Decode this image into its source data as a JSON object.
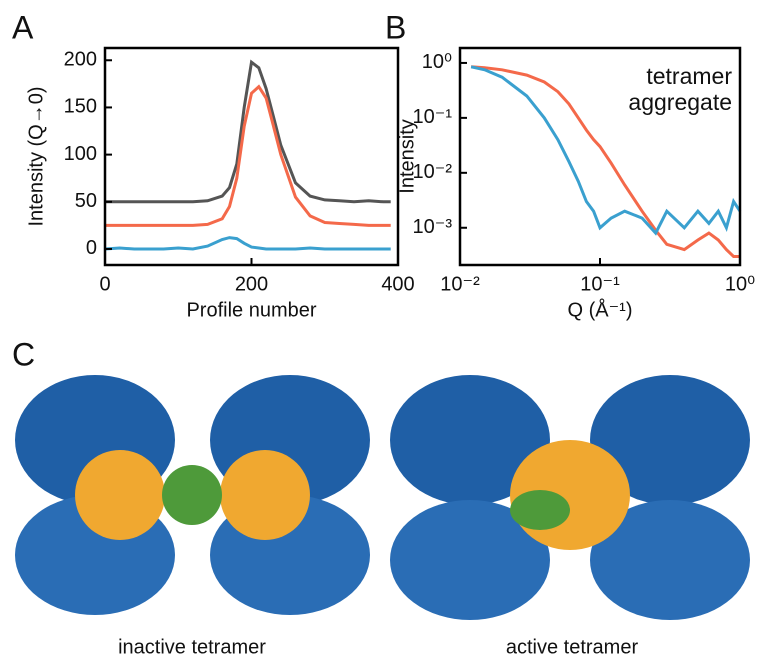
{
  "panel_labels": [
    "A",
    "B",
    "C"
  ],
  "chart_data": [
    {
      "type": "line",
      "xlabel": "Profile number",
      "ylabel": "Intensity (Q→0)",
      "x": [
        0,
        20,
        40,
        60,
        80,
        100,
        120,
        140,
        160,
        170,
        180,
        190,
        200,
        210,
        220,
        230,
        240,
        260,
        280,
        300,
        320,
        340,
        360,
        380,
        390
      ],
      "series": [
        {
          "color": "#555555",
          "values": [
            50,
            50,
            50,
            50,
            50,
            50,
            50,
            51,
            56,
            65,
            90,
            150,
            198,
            192,
            170,
            140,
            110,
            70,
            56,
            52,
            51,
            50,
            51,
            50,
            50
          ]
        },
        {
          "color": "#f4694a",
          "values": [
            25,
            25,
            25,
            25,
            25,
            25,
            25,
            26,
            32,
            45,
            75,
            130,
            165,
            172,
            160,
            130,
            100,
            55,
            35,
            28,
            27,
            26,
            25,
            25,
            25
          ]
        },
        {
          "color": "#3aa0cf",
          "values": [
            0,
            1,
            0,
            0,
            0,
            1,
            0,
            3,
            10,
            12,
            11,
            6,
            2,
            1,
            0,
            0,
            0,
            0,
            1,
            0,
            0,
            0,
            0,
            0,
            0
          ]
        }
      ],
      "xlim": [
        0,
        400
      ],
      "xticks": [
        0,
        200,
        400
      ],
      "ylim": [
        -17,
        213
      ],
      "yticks": [
        0,
        50,
        100,
        150,
        200
      ]
    },
    {
      "type": "line",
      "xlabel": "Q (Å⁻¹)",
      "ylabel": "Intensity",
      "xlog": true,
      "ylog": true,
      "x": [
        0.012,
        0.015,
        0.02,
        0.03,
        0.04,
        0.05,
        0.06,
        0.07,
        0.08,
        0.09,
        0.1,
        0.12,
        0.15,
        0.2,
        0.25,
        0.3,
        0.4,
        0.5,
        0.6,
        0.7,
        0.8,
        0.9,
        1.0
      ],
      "series": [
        {
          "name": "tetramer",
          "color": "#f4694a",
          "values": [
            0.85,
            0.82,
            0.75,
            0.6,
            0.45,
            0.3,
            0.18,
            0.1,
            0.06,
            0.04,
            0.03,
            0.015,
            0.006,
            0.002,
            0.0009,
            0.0005,
            0.0004,
            0.0006,
            0.0008,
            0.0006,
            0.0004,
            0.0003,
            0.0003
          ]
        },
        {
          "name": "aggregate",
          "color": "#3aa0cf",
          "values": [
            0.85,
            0.75,
            0.55,
            0.25,
            0.1,
            0.04,
            0.016,
            0.007,
            0.003,
            0.002,
            0.001,
            0.0015,
            0.002,
            0.0015,
            0.0008,
            0.002,
            0.001,
            0.002,
            0.0012,
            0.002,
            0.001,
            0.003,
            0.002
          ]
        }
      ],
      "xlim": [
        0.01,
        1
      ],
      "xticks": [
        {
          "value": 0.01,
          "label": "10⁻²"
        },
        {
          "value": 0.1,
          "label": "10⁻¹"
        },
        {
          "value": 1,
          "label": "10⁰"
        }
      ],
      "ylim": [
        0.00021,
        1.87
      ],
      "yticks": [
        {
          "value": 1,
          "label": "10⁰"
        },
        {
          "value": 0.1,
          "label": "10⁻¹"
        },
        {
          "value": 0.01,
          "label": "10⁻²"
        },
        {
          "value": 0.001,
          "label": "10⁻³"
        }
      ]
    }
  ],
  "structures": [
    {
      "label": "inactive tetramer"
    },
    {
      "label": "active tetramer"
    }
  ]
}
